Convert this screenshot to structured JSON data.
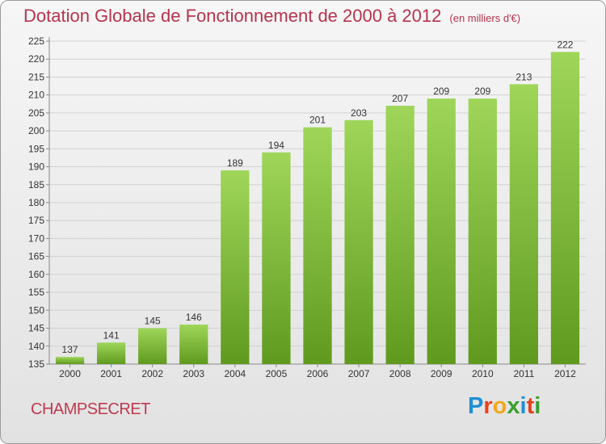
{
  "header": {
    "title": "Dotation Globale de Fonctionnement de 2000 à 2012",
    "unit": "(en milliers d'€)"
  },
  "commune": "CHAMPSECRET",
  "logo": {
    "letters": [
      {
        "char": "P",
        "color": "#1f8fd6"
      },
      {
        "char": "r",
        "color": "#e8411c"
      },
      {
        "char": "o",
        "color": "#f2a81d"
      },
      {
        "char": "x",
        "color": "#3a9e2f"
      },
      {
        "char": "i",
        "color": "#1f8fd6"
      },
      {
        "char": "t",
        "color": "#e8411c"
      },
      {
        "char": "i",
        "color": "#3a9e2f"
      }
    ]
  },
  "colors": {
    "bar_light": "#9fd65a",
    "bar_dark": "#5f9a1e",
    "title": "#b5344d"
  },
  "chart_data": {
    "type": "bar",
    "title": "Dotation Globale de Fonctionnement de 2000 à 2012",
    "subtitle": "(en milliers d'€)",
    "categories": [
      "2000",
      "2001",
      "2002",
      "2003",
      "2004",
      "2005",
      "2006",
      "2007",
      "2008",
      "2009",
      "2010",
      "2011",
      "2012"
    ],
    "values": [
      137,
      141,
      145,
      146,
      189,
      194,
      201,
      203,
      207,
      209,
      209,
      213,
      222
    ],
    "ylim": [
      135,
      225
    ],
    "yticks": [
      135,
      140,
      145,
      150,
      155,
      160,
      165,
      170,
      175,
      180,
      185,
      190,
      195,
      200,
      205,
      210,
      215,
      220,
      225
    ],
    "xlabel": "",
    "ylabel": "",
    "grid": true,
    "data_labels": true
  }
}
